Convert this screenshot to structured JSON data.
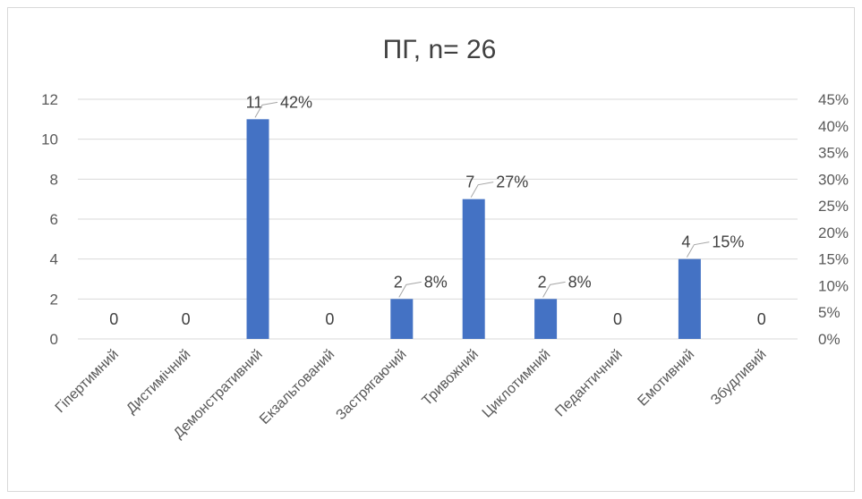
{
  "chart_data": {
    "type": "bar",
    "title": "ПГ, n= 26",
    "categories": [
      "Гіпертимний",
      "Дистимічний",
      "Демонстративний",
      "Екзальтований",
      "Застрягаючий",
      "Тривожний",
      "Циклотимний",
      "Педантичний",
      "Емотивний",
      "Збудливий"
    ],
    "values": [
      0,
      0,
      11,
      0,
      2,
      7,
      2,
      0,
      4,
      0
    ],
    "percent_labels": [
      "",
      "",
      "42%",
      "",
      "8%",
      "27%",
      "8%",
      "",
      "15%",
      ""
    ],
    "ylim": [
      0,
      12
    ],
    "y_ticks": [
      "0",
      "2",
      "4",
      "6",
      "8",
      "10",
      "12"
    ],
    "y2lim": [
      0,
      45
    ],
    "y2_ticks": [
      "0%",
      "5%",
      "10%",
      "15%",
      "20%",
      "25%",
      "30%",
      "35%",
      "40%",
      "45%"
    ],
    "grid": true,
    "bar_color": "#4472c4"
  }
}
